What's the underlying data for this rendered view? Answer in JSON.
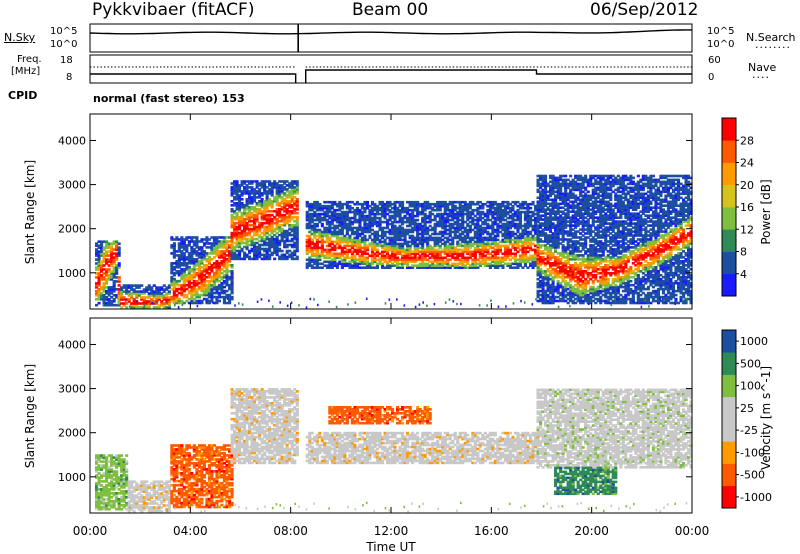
{
  "header": {
    "title": "Pykkvibaer (fitACF)",
    "beam": "Beam 00",
    "date": "06/Sep/2012"
  },
  "top_panels": {
    "nsky_label": "N.Sky",
    "nsky_top": "10^5",
    "nsky_bottom": "10^0",
    "nsearch_label": "N.Search",
    "nsearch_top": "10^5",
    "nsearch_bottom": "10^0",
    "freq_label_1": "Freq.",
    "freq_label_2": "[MHz]",
    "freq_top": "18",
    "freq_bottom": "8",
    "nave_label": "Nave",
    "nave_top": "60",
    "nave_bottom": "0",
    "cpid_label": "CPID",
    "cpid_text": "normal (fast stereo) 153"
  },
  "colors": {
    "power": [
      "#1a1aff",
      "#1c4fa0",
      "#2e8b57",
      "#7fbf3f",
      "#d6c21c",
      "#ff9a00",
      "#ff5a00",
      "#ff0000"
    ],
    "velocity": [
      "#ff0000",
      "#ff5a00",
      "#ff9a00",
      "#c8c8c8",
      "#c8c8c8",
      "#7fbf3f",
      "#2e8b57",
      "#1c4fa0"
    ]
  },
  "chart_data": [
    {
      "type": "heatmap",
      "quantity": "Power",
      "xlabel": "",
      "ylabel": "Slant Range [km]",
      "x_ticks": [
        "00:00",
        "04:00",
        "08:00",
        "12:00",
        "16:00",
        "20:00",
        "00:00"
      ],
      "y_ticks": [
        "1000",
        "2000",
        "3000",
        "4000"
      ],
      "xlim_hours": [
        0,
        24
      ],
      "ylim_km": [
        180,
        4600
      ],
      "colorbar_label": "Power [dB]",
      "colorbar_ticks": [
        "4",
        "8",
        "12",
        "16",
        "20",
        "24",
        "28"
      ],
      "regions": [
        {
          "t0": 0.2,
          "t1": 1.2,
          "r0": 250,
          "r1": 1700,
          "band": [
            [
              0.2,
              500,
              900
            ],
            [
              0.6,
              900,
              1400
            ],
            [
              1.0,
              1300,
              1600
            ]
          ]
        },
        {
          "t0": 1.2,
          "t1": 3.2,
          "r0": 200,
          "r1": 700,
          "band": [
            [
              1.2,
              250,
              450
            ],
            [
              2.5,
              250,
              400
            ],
            [
              3.2,
              300,
              450
            ]
          ]
        },
        {
          "t0": 3.2,
          "t1": 5.6,
          "r0": 300,
          "r1": 1800,
          "band": [
            [
              3.2,
              350,
              600
            ],
            [
              4.5,
              700,
              1100
            ],
            [
              5.6,
              1300,
              1700
            ]
          ]
        },
        {
          "t0": 5.6,
          "t1": 8.2,
          "r0": 1300,
          "r1": 3100,
          "band": [
            [
              5.6,
              1700,
              2100
            ],
            [
              7.0,
              2000,
              2400
            ],
            [
              8.2,
              2300,
              2700
            ]
          ]
        },
        {
          "t0": 8.6,
          "t1": 17.8,
          "r0": 1100,
          "r1": 2600,
          "band": [
            [
              8.6,
              1500,
              1800
            ],
            [
              10.5,
              1350,
              1600
            ],
            [
              12.5,
              1250,
              1450
            ],
            [
              15.0,
              1250,
              1500
            ],
            [
              17.8,
              1400,
              1650
            ]
          ]
        },
        {
          "t0": 17.8,
          "t1": 24.0,
          "r0": 300,
          "r1": 3200,
          "band": [
            [
              17.8,
              1200,
              1500
            ],
            [
              19.5,
              700,
              1100
            ],
            [
              21.0,
              900,
              1200
            ],
            [
              22.5,
              1300,
              1600
            ],
            [
              24.0,
              1800,
              2100
            ]
          ]
        }
      ]
    },
    {
      "type": "heatmap",
      "quantity": "Velocity",
      "xlabel": "Time UT",
      "ylabel": "Slant Range [km]",
      "x_ticks": [
        "00:00",
        "04:00",
        "08:00",
        "12:00",
        "16:00",
        "20:00",
        "00:00"
      ],
      "y_ticks": [
        "1000",
        "2000",
        "3000",
        "4000"
      ],
      "xlim_hours": [
        0,
        24
      ],
      "ylim_km": [
        180,
        4600
      ],
      "colorbar_label": "Velocity [m s^-1]",
      "colorbar_ticks": [
        "-1000",
        "-500",
        "-100",
        "-25",
        "25",
        "100",
        "500",
        "1000"
      ],
      "regions": [
        {
          "t0": 0.2,
          "t1": 1.5,
          "r0": 250,
          "r1": 1500,
          "level": 5
        },
        {
          "t0": 1.5,
          "t1": 3.2,
          "r0": 200,
          "r1": 900,
          "level": 3
        },
        {
          "t0": 3.2,
          "t1": 5.6,
          "r0": 300,
          "r1": 1700,
          "level": 1
        },
        {
          "t0": 5.6,
          "t1": 8.2,
          "r0": 1300,
          "r1": 3000,
          "level": 3
        },
        {
          "t0": 8.6,
          "t1": 17.8,
          "r0": 1300,
          "r1": 2000,
          "level": 3
        },
        {
          "t0": 9.5,
          "t1": 13.5,
          "r0": 2200,
          "r1": 2600,
          "level": 1
        },
        {
          "t0": 17.8,
          "t1": 24.0,
          "r0": 1200,
          "r1": 3000,
          "level": 4
        },
        {
          "t0": 18.5,
          "t1": 21.0,
          "r0": 600,
          "r1": 1200,
          "level": 6
        }
      ]
    }
  ]
}
